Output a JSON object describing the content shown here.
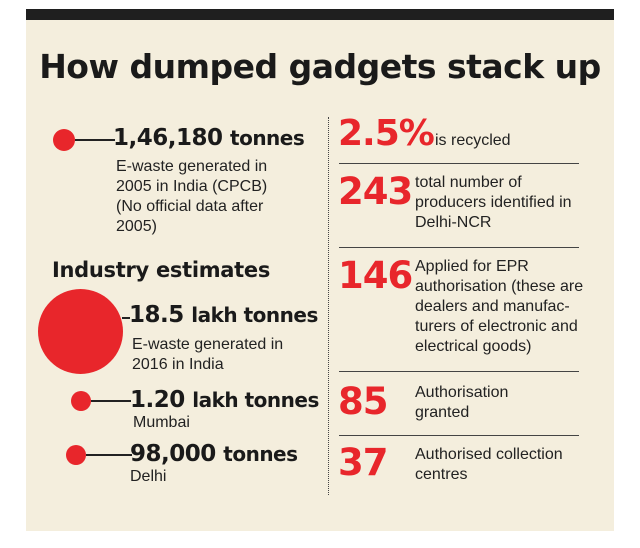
{
  "title": "How dumped gadgets stack up",
  "left": {
    "cpcb": {
      "value": "1,46,180",
      "unit": "tonnes",
      "desc": [
        "E-waste generated in",
        "2005 in India (CPCB)",
        "(No official data after",
        "2005)"
      ]
    },
    "industry_heading": "Industry estimates",
    "india2016": {
      "value": "18.5",
      "unit": "lakh tonnes",
      "desc": [
        "E-waste generated in",
        "2016 in India"
      ]
    },
    "mumbai": {
      "value": "1.20",
      "unit": "lakh tonnes",
      "desc": "Mumbai"
    },
    "delhi": {
      "value": "98,000",
      "unit": "tonnes",
      "desc": "Delhi"
    }
  },
  "right": {
    "recycled": {
      "value": "2.5%",
      "desc": "is recycled"
    },
    "producers": {
      "value": "243",
      "desc": [
        "total number of",
        "producers identified in",
        "Delhi-NCR"
      ]
    },
    "epr": {
      "value": "146",
      "desc": [
        "Applied for EPR",
        "authorisation (these are",
        "dealers and manufac-",
        "turers of electronic and",
        "electrical goods)"
      ]
    },
    "granted": {
      "value": "85",
      "desc": [
        "Authorisation",
        "granted"
      ]
    },
    "centres": {
      "value": "37",
      "desc": [
        "Authorised collection",
        "centres"
      ]
    }
  },
  "colors": {
    "accent": "#e8262b",
    "background": "#f4eedd",
    "bar": "#1f1f1f"
  }
}
